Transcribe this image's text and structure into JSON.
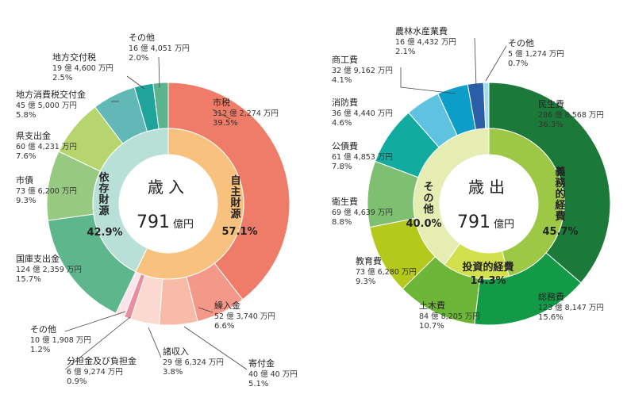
{
  "chart_data": [
    {
      "type": "pie",
      "center_title": "歳入",
      "total_value": "791",
      "total_unit": "億円",
      "outer_series": [
        {
          "name": "市税",
          "amount": "312 億 2,274 万円",
          "pct_label": "39.5%",
          "value": 39.5,
          "color": "#ef7c68"
        },
        {
          "name": "繰入金",
          "amount": "52 億 3,740 万円",
          "pct_label": "6.6%",
          "value": 6.6,
          "color": "#f4988a"
        },
        {
          "name": "寄付金",
          "amount": "40 億 40 万円",
          "pct_label": "5.1%",
          "value": 5.1,
          "color": "#f7bba8"
        },
        {
          "name": "諸収入",
          "amount": "29 億 6,324 万円",
          "pct_label": "3.8%",
          "value": 3.8,
          "color": "#fbd9d1"
        },
        {
          "name": "分担金及び負担金",
          "amount": "6 億 9,274 万円",
          "pct_label": "0.9%",
          "value": 0.9,
          "color": "#e58fa0"
        },
        {
          "name": "その他",
          "amount": "10 億 1,908 万円",
          "pct_label": "1.2%",
          "value": 1.2,
          "color": "#fde3ea"
        },
        {
          "name": "国庫支出金",
          "amount": "124 億 2,359 万円",
          "pct_label": "15.7%",
          "value": 15.7,
          "color": "#5eb68c"
        },
        {
          "name": "市債",
          "amount": "73 億 6,200 万円",
          "pct_label": "9.3%",
          "value": 9.3,
          "color": "#98c983"
        },
        {
          "name": "県支出金",
          "amount": "60 億 4,231 万円",
          "pct_label": "7.6%",
          "value": 7.6,
          "color": "#b7d56f"
        },
        {
          "name": "地方消費税交付金",
          "amount": "45 億 5,000 万円",
          "pct_label": "5.8%",
          "value": 5.8,
          "color": "#62b8b7"
        },
        {
          "name": "地方交付税",
          "amount": "19 億 4,600 万円",
          "pct_label": "2.5%",
          "value": 2.5,
          "color": "#20a39a"
        },
        {
          "name": "その他",
          "amount": "16 億 4,051 万円",
          "pct_label": "2.0%",
          "value": 2.0,
          "color": "#5bb48e"
        }
      ],
      "inner_series": [
        {
          "name": "自主財源",
          "pct_label": "57.1%",
          "value": 57.1,
          "color": "#f8c27e"
        },
        {
          "name": "依存財源",
          "pct_label": "42.9%",
          "value": 42.9,
          "color": "#b9e0d6"
        }
      ]
    },
    {
      "type": "pie",
      "center_title": "歳出",
      "total_value": "791",
      "total_unit": "億円",
      "outer_series": [
        {
          "name": "民生費",
          "amount": "286 億 8,568 万円",
          "pct_label": "36.3%",
          "value": 36.3,
          "color": "#1b7a3a"
        },
        {
          "name": "総務費",
          "amount": "123 億 8,147 万円",
          "pct_label": "15.6%",
          "value": 15.6,
          "color": "#139a47"
        },
        {
          "name": "土木費",
          "amount": "84 億 8,205 万円",
          "pct_label": "10.7%",
          "value": 10.7,
          "color": "#6cb536"
        },
        {
          "name": "教育費",
          "amount": "73 億 6,280 万円",
          "pct_label": "9.3%",
          "value": 9.3,
          "color": "#b4c91c"
        },
        {
          "name": "衛生費",
          "amount": "69 億 4,639 万円",
          "pct_label": "8.8%",
          "value": 8.8,
          "color": "#7fbf72"
        },
        {
          "name": "公債費",
          "amount": "61 億 4,853 万円",
          "pct_label": "7.8%",
          "value": 7.8,
          "color": "#12ab9f"
        },
        {
          "name": "消防費",
          "amount": "36 億 4,440 万円",
          "pct_label": "4.6%",
          "value": 4.6,
          "color": "#5fc2e0"
        },
        {
          "name": "商工費",
          "amount": "32 億 9,162 万円",
          "pct_label": "4.1%",
          "value": 4.1,
          "color": "#0c9dc8"
        },
        {
          "name": "農林水産業費",
          "amount": "16 億 4,432 万円",
          "pct_label": "2.1%",
          "value": 2.1,
          "color": "#2a5fa8"
        },
        {
          "name": "その他",
          "amount": "5 億 1,274 万円",
          "pct_label": "0.7%",
          "value": 0.7,
          "color": "#a8d8ef"
        }
      ],
      "inner_series": [
        {
          "name": "義務的経費",
          "pct_label": "45.7%",
          "value": 45.7,
          "color": "#9cc846"
        },
        {
          "name": "投資的経費",
          "pct_label": "14.3%",
          "value": 14.3,
          "color": "#d2e04e"
        },
        {
          "name": "その他",
          "pct_label": "40.0%",
          "value": 40.0,
          "color": "#e6edb3"
        }
      ]
    }
  ]
}
